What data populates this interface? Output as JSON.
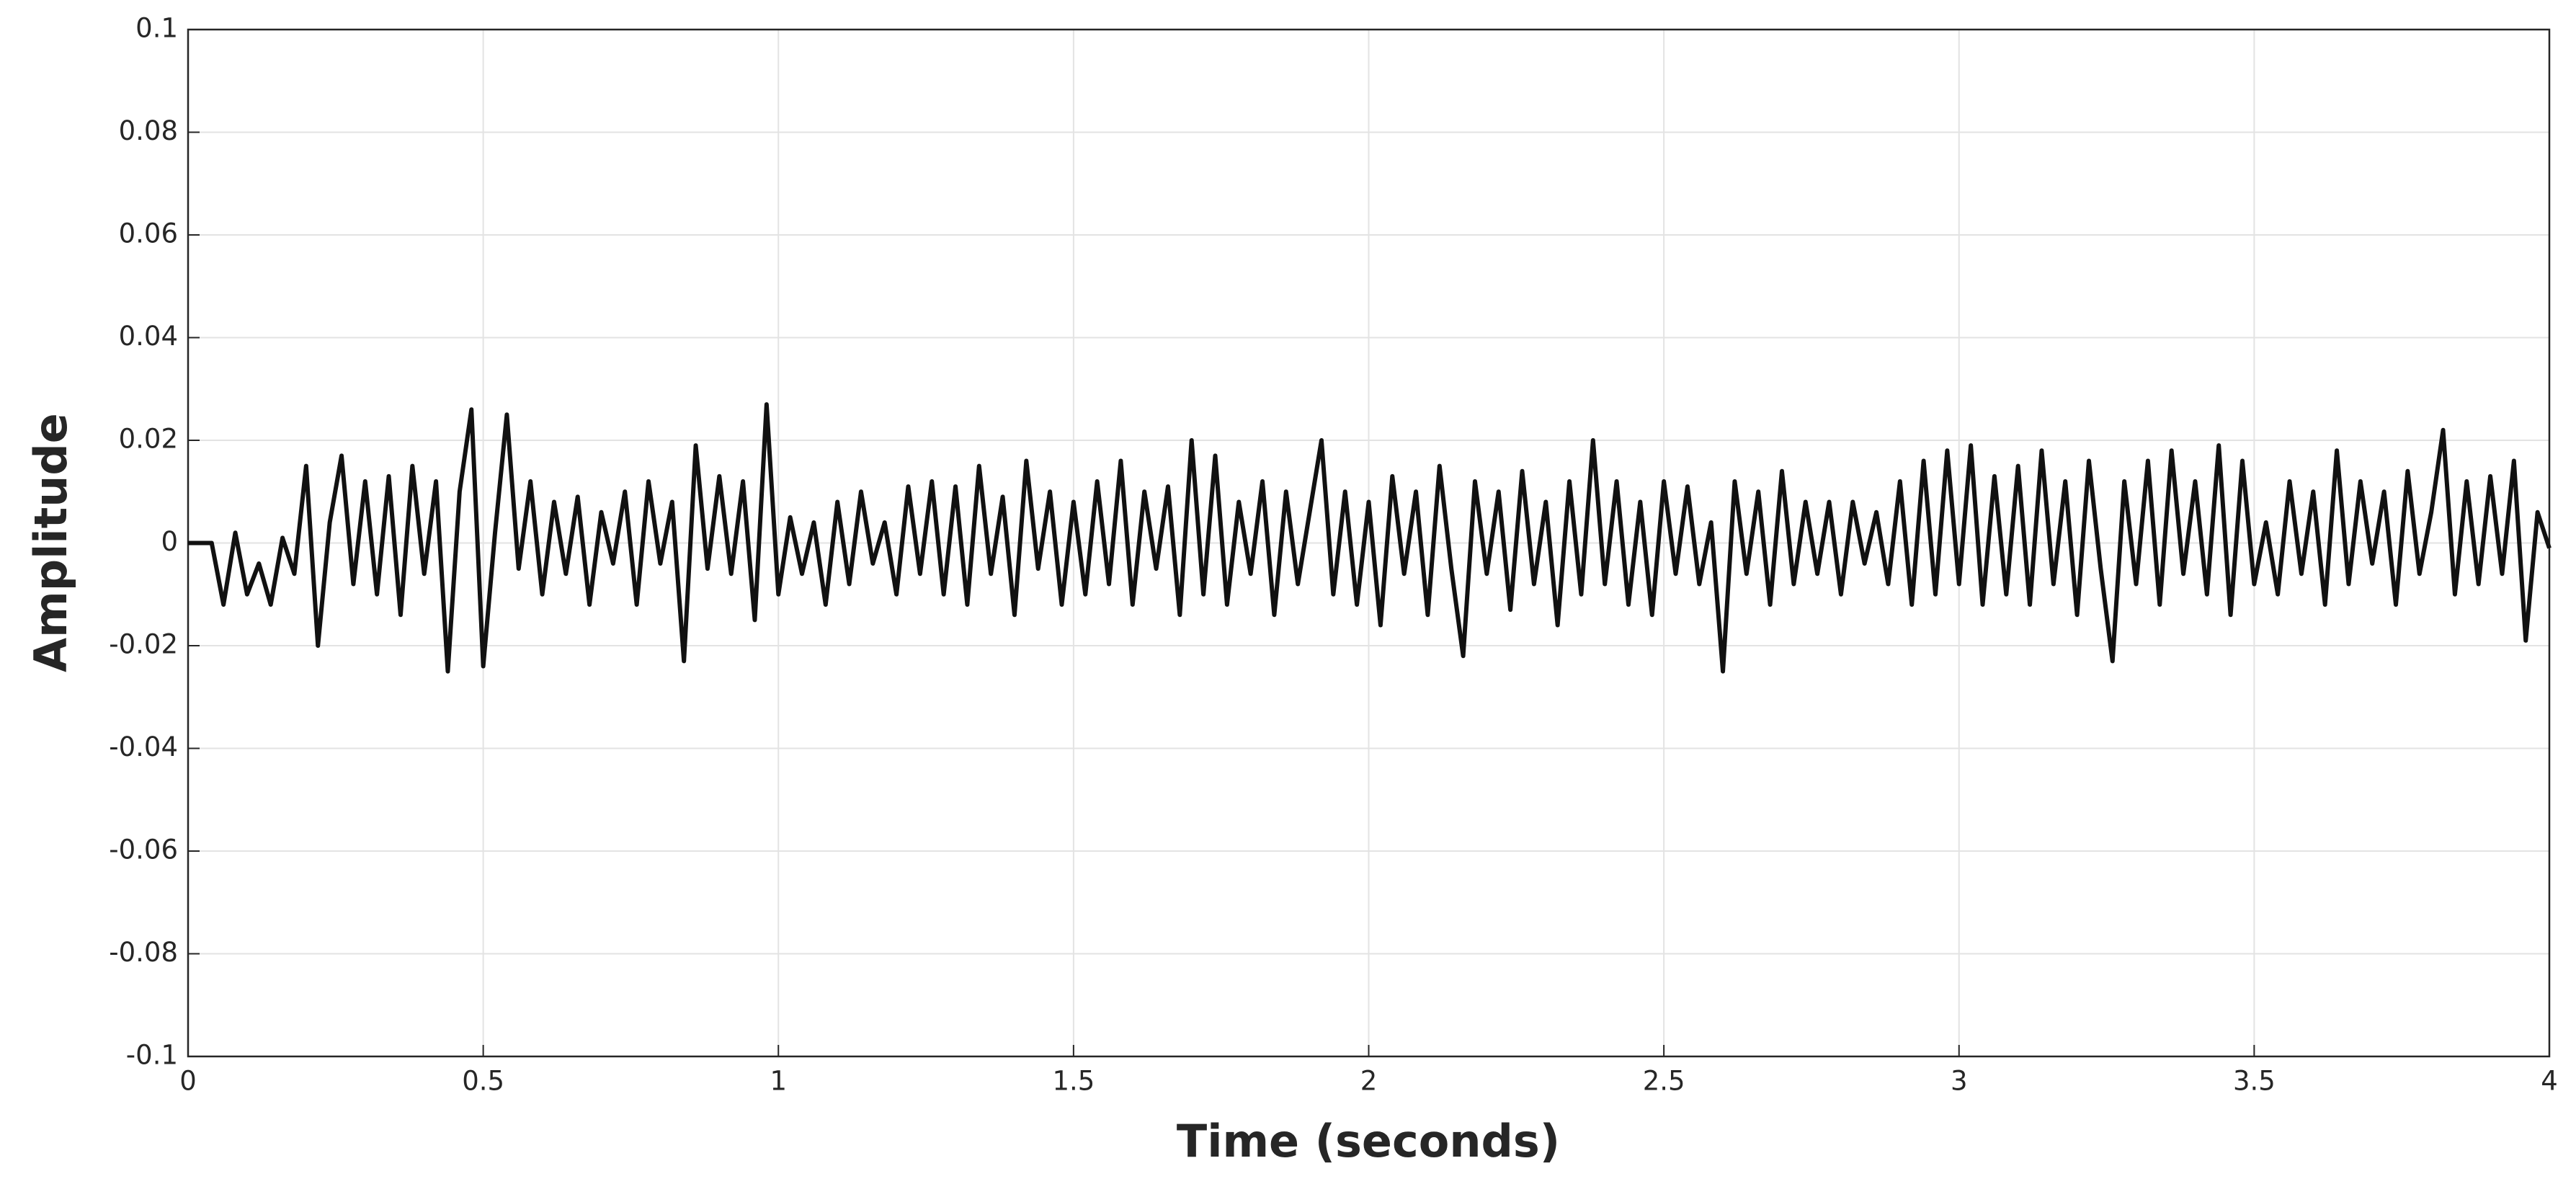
{
  "chart_data": {
    "type": "line",
    "x_label": "Time (seconds)",
    "y_label": "Amplitude",
    "x": [
      0,
      0.02,
      0.04,
      0.06,
      0.08,
      0.1,
      0.12,
      0.14,
      0.16,
      0.18,
      0.2,
      0.22,
      0.24,
      0.26,
      0.28,
      0.3,
      0.32,
      0.34,
      0.36,
      0.38,
      0.4,
      0.42,
      0.44,
      0.46,
      0.48,
      0.5,
      0.52,
      0.54,
      0.56,
      0.58,
      0.6,
      0.62,
      0.64,
      0.66,
      0.68,
      0.7,
      0.72,
      0.74,
      0.76,
      0.78,
      0.8,
      0.82,
      0.84,
      0.86,
      0.88,
      0.9,
      0.92,
      0.94,
      0.96,
      0.98,
      1,
      1.02,
      1.04,
      1.06,
      1.08,
      1.1,
      1.12,
      1.14,
      1.16,
      1.18,
      1.2,
      1.22,
      1.24,
      1.26,
      1.28,
      1.3,
      1.32,
      1.34,
      1.36,
      1.38,
      1.4,
      1.42,
      1.44,
      1.46,
      1.48,
      1.5,
      1.52,
      1.54,
      1.56,
      1.58,
      1.6,
      1.62,
      1.64,
      1.66,
      1.68,
      1.7,
      1.72,
      1.74,
      1.76,
      1.78,
      1.8,
      1.82,
      1.84,
      1.86,
      1.88,
      1.9,
      1.92,
      1.94,
      1.96,
      1.98,
      2,
      2.02,
      2.04,
      2.06,
      2.08,
      2.1,
      2.12,
      2.14,
      2.16,
      2.18,
      2.2,
      2.22,
      2.24,
      2.26,
      2.28,
      2.3,
      2.32,
      2.34,
      2.36,
      2.38,
      2.4,
      2.42,
      2.44,
      2.46,
      2.48,
      2.5,
      2.52,
      2.54,
      2.56,
      2.58,
      2.6,
      2.62,
      2.64,
      2.66,
      2.68,
      2.7,
      2.72,
      2.74,
      2.76,
      2.78,
      2.8,
      2.82,
      2.84,
      2.86,
      2.88,
      2.9,
      2.92,
      2.94,
      2.96,
      2.98,
      3,
      3.02,
      3.04,
      3.06,
      3.08,
      3.1,
      3.12,
      3.14,
      3.16,
      3.18,
      3.2,
      3.22,
      3.24,
      3.26,
      3.28,
      3.3,
      3.32,
      3.34,
      3.36,
      3.38,
      3.4,
      3.42,
      3.44,
      3.46,
      3.48,
      3.5,
      3.52,
      3.54,
      3.56,
      3.58,
      3.6,
      3.62,
      3.64,
      3.66,
      3.68,
      3.7,
      3.72,
      3.74,
      3.76,
      3.78,
      3.8,
      3.82,
      3.84,
      3.86,
      3.88,
      3.9,
      3.92,
      3.94,
      3.96,
      3.98,
      4
    ],
    "series": [
      {
        "color": "#111111",
        "values": [
          0,
          0,
          0,
          -0.012,
          0.002,
          -0.01,
          -0.004,
          -0.012,
          0.001,
          -0.006,
          0.015,
          -0.02,
          0.004,
          0.017,
          -0.008,
          0.012,
          -0.01,
          0.013,
          -0.014,
          0.015,
          -0.006,
          0.012,
          -0.025,
          0.01,
          0.026,
          -0.024,
          0.002,
          0.025,
          -0.005,
          0.012,
          -0.01,
          0.008,
          -0.006,
          0.009,
          -0.012,
          0.006,
          -0.004,
          0.01,
          -0.012,
          0.012,
          -0.004,
          0.008,
          -0.023,
          0.019,
          -0.005,
          0.013,
          -0.006,
          0.012,
          -0.015,
          0.027,
          -0.01,
          0.005,
          -0.006,
          0.004,
          -0.012,
          0.008,
          -0.008,
          0.01,
          -0.004,
          0.004,
          -0.01,
          0.011,
          -0.006,
          0.012,
          -0.01,
          0.011,
          -0.012,
          0.015,
          -0.006,
          0.009,
          -0.014,
          0.016,
          -0.005,
          0.01,
          -0.012,
          0.008,
          -0.01,
          0.012,
          -0.008,
          0.016,
          -0.012,
          0.01,
          -0.005,
          0.011,
          -0.014,
          0.02,
          -0.01,
          0.017,
          -0.012,
          0.008,
          -0.006,
          0.012,
          -0.014,
          0.01,
          -0.008,
          0.006,
          0.02,
          -0.01,
          0.01,
          -0.012,
          0.008,
          -0.016,
          0.013,
          -0.006,
          0.01,
          -0.014,
          0.015,
          -0.005,
          -0.022,
          0.012,
          -0.006,
          0.01,
          -0.013,
          0.014,
          -0.008,
          0.008,
          -0.016,
          0.012,
          -0.01,
          0.02,
          -0.008,
          0.012,
          -0.012,
          0.008,
          -0.014,
          0.012,
          -0.006,
          0.011,
          -0.008,
          0.004,
          -0.025,
          0.012,
          -0.006,
          0.01,
          -0.012,
          0.014,
          -0.008,
          0.008,
          -0.006,
          0.008,
          -0.01,
          0.008,
          -0.004,
          0.006,
          -0.008,
          0.012,
          -0.012,
          0.016,
          -0.01,
          0.018,
          -0.008,
          0.019,
          -0.012,
          0.013,
          -0.01,
          0.015,
          -0.012,
          0.018,
          -0.008,
          0.012,
          -0.014,
          0.016,
          -0.005,
          -0.023,
          0.012,
          -0.008,
          0.016,
          -0.012,
          0.018,
          -0.006,
          0.012,
          -0.01,
          0.019,
          -0.014,
          0.016,
          -0.008,
          0.004,
          -0.01,
          0.012,
          -0.006,
          0.01,
          -0.012,
          0.018,
          -0.008,
          0.012,
          -0.004,
          0.01,
          -0.012,
          0.014,
          -0.006,
          0.006,
          0.022,
          -0.01,
          0.012,
          -0.008,
          0.013,
          -0.006,
          0.016,
          -0.019,
          0.006,
          -0.001
        ]
      }
    ],
    "xlim": [
      0,
      4
    ],
    "xticks": [
      0,
      0.5,
      1,
      1.5,
      2,
      2.5,
      3,
      3.5,
      4
    ],
    "ylim": [
      -0.1,
      0.1
    ],
    "yticks": [
      -0.1,
      -0.08,
      -0.06,
      -0.04,
      -0.02,
      0,
      0.02,
      0.04,
      0.06,
      0.08,
      0.1
    ],
    "grid": true
  }
}
